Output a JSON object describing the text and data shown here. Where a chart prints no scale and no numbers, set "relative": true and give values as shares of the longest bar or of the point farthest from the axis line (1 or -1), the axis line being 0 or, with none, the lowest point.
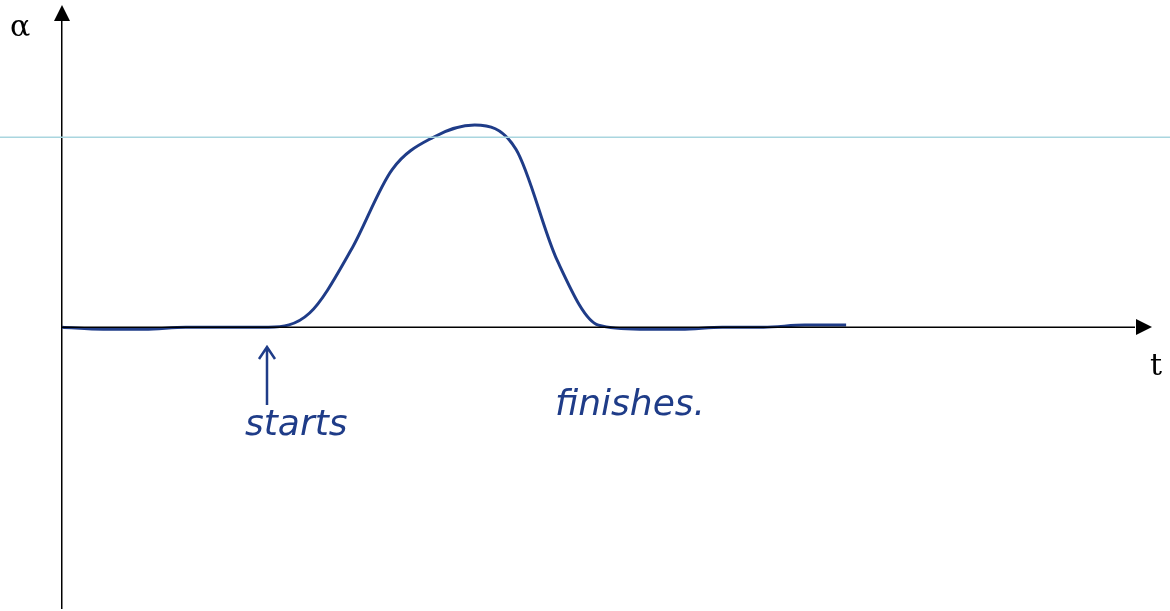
{
  "chart_data": {
    "type": "line",
    "relative": true,
    "xlabel": "t",
    "ylabel": "α",
    "categories": [
      null,
      null,
      null,
      null,
      null,
      null,
      null,
      null,
      null,
      null,
      null,
      null,
      null,
      null,
      null,
      null,
      null,
      null,
      null,
      null,
      null,
      null,
      null,
      null,
      null,
      null,
      null
    ],
    "series": [
      {
        "color": "#1f3c88",
        "values": [
          0,
          -0.01,
          -0.01,
          0,
          0,
          0,
          0.07,
          0.38,
          0.78,
          0.94,
          1,
          0.88,
          0.33,
          0.01,
          -0.01,
          -0.01,
          0,
          0,
          0.01,
          0.01,
          null,
          null,
          null,
          null,
          null,
          null,
          null
        ]
      }
    ],
    "ref_lines": [
      {
        "axis": "y",
        "value": 0.94,
        "color": "#a9d6df"
      }
    ],
    "annotations": [
      "starts",
      "finishes."
    ]
  }
}
